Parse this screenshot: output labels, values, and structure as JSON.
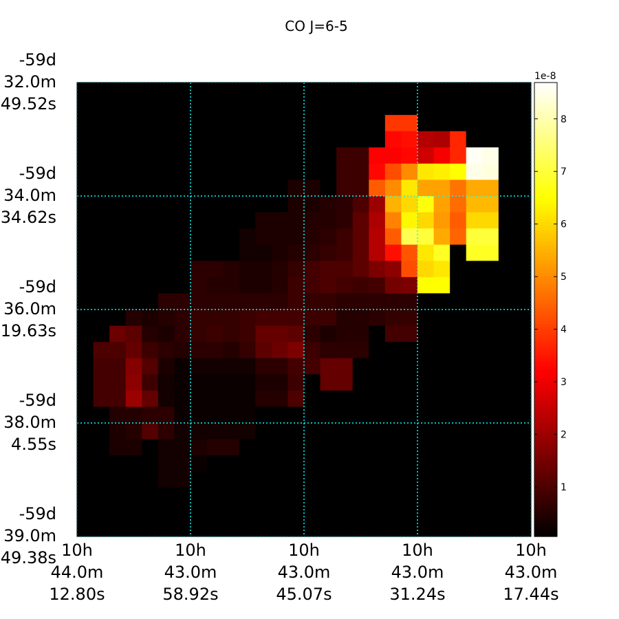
{
  "chart_data": {
    "type": "heatmap",
    "title": "CO J=6-5",
    "colormap": "hot",
    "clim": [
      0.06,
      8.69
    ],
    "colorbar_ticks": [
      1,
      2,
      3,
      4,
      5,
      6,
      7,
      8
    ],
    "colorbar_offset_label": "1e-8",
    "grid": true,
    "grid_color": "#00ffff",
    "xlim": [
      0,
      28
    ],
    "ylim": [
      28,
      0
    ],
    "xticks": [
      {
        "value": 0,
        "label": [
          "10h",
          "44.0m",
          "12.80s"
        ]
      },
      {
        "value": 7,
        "label": [
          "10h",
          "43.0m",
          "58.92s"
        ]
      },
      {
        "value": 14,
        "label": [
          "10h",
          "43.0m",
          "45.07s"
        ]
      },
      {
        "value": 21,
        "label": [
          "10h",
          "43.0m",
          "31.24s"
        ]
      },
      {
        "value": 28,
        "label": [
          "10h",
          "43.0m",
          "17.44s"
        ]
      }
    ],
    "yticks": [
      {
        "value": 0,
        "label": [
          "-59d",
          "32.0m",
          "49.52s"
        ]
      },
      {
        "value": 7,
        "label": [
          "-59d",
          "34.0m",
          "34.62s"
        ]
      },
      {
        "value": 14,
        "label": [
          "-59d",
          "36.0m",
          "19.63s"
        ]
      },
      {
        "value": 21,
        "label": [
          "-59d",
          "38.0m",
          "4.55s"
        ]
      },
      {
        "value": 28,
        "label": [
          "-59d",
          "39.0m",
          "49.38s"
        ]
      }
    ],
    "z": [
      [
        0,
        0,
        0,
        0,
        0,
        0,
        0,
        0,
        0,
        0,
        0,
        0,
        0,
        0,
        0,
        0,
        0,
        0,
        0,
        0,
        0,
        0,
        0,
        0,
        0,
        0,
        0,
        0
      ],
      [
        0,
        0,
        0,
        0,
        0,
        0,
        0,
        0,
        0,
        0,
        0,
        0,
        0,
        0,
        0,
        0,
        0,
        0,
        0,
        0,
        0,
        0,
        0,
        0,
        0,
        0,
        0,
        0
      ],
      [
        0,
        0,
        0,
        0,
        0,
        0,
        0,
        0,
        0,
        0,
        0,
        0,
        0,
        0,
        0,
        0,
        0,
        0,
        0,
        3.9,
        3.9,
        0,
        0,
        0,
        0,
        0,
        0,
        0
      ],
      [
        0,
        0,
        0,
        0,
        0,
        0,
        0,
        0,
        0,
        0,
        0,
        0,
        0,
        0,
        0,
        0,
        0,
        0,
        0,
        3.3,
        3.4,
        2.3,
        2.2,
        3.7,
        0,
        0,
        0,
        0
      ],
      [
        0,
        0,
        0,
        0,
        0,
        0,
        0,
        0,
        0,
        0,
        0,
        0,
        0,
        0,
        0,
        0,
        0.8,
        0.8,
        3.2,
        3.2,
        3.3,
        2.6,
        3.1,
        3.7,
        8.6,
        8.5,
        0,
        0
      ],
      [
        0,
        0,
        0,
        0,
        0,
        0,
        0,
        0,
        0,
        0,
        0,
        0,
        0,
        0,
        0,
        0,
        0.8,
        0.8,
        3.3,
        4.2,
        5.0,
        6.2,
        6.3,
        6.5,
        8.5,
        8.4,
        0,
        0
      ],
      [
        0,
        0,
        0,
        0,
        0,
        0,
        0,
        0,
        0,
        0,
        0,
        0,
        0,
        0.4,
        0.4,
        0,
        0.8,
        0.8,
        4.4,
        5.0,
        6.2,
        5.3,
        5.3,
        4.7,
        5.4,
        5.4,
        0,
        0
      ],
      [
        0,
        0,
        0,
        0,
        0,
        0,
        0,
        0,
        0,
        0,
        0,
        0,
        0,
        0.4,
        0.4,
        0.5,
        0.6,
        1.0,
        2.0,
        5.5,
        6.0,
        6.6,
        5.3,
        4.6,
        5.6,
        5.6,
        0,
        0
      ],
      [
        0,
        0,
        0,
        0,
        0,
        0,
        0,
        0,
        0,
        0,
        0,
        0.4,
        0.4,
        0.4,
        0.5,
        0.5,
        0.6,
        1.2,
        2.2,
        4.9,
        6.4,
        6.0,
        5.2,
        4.4,
        6.0,
        6.0,
        0,
        0
      ],
      [
        0,
        0,
        0,
        0,
        0,
        0,
        0,
        0,
        0,
        0,
        0.3,
        0.4,
        0.4,
        0.4,
        0.5,
        0.6,
        0.8,
        1.2,
        2.3,
        4.4,
        7.2,
        7.0,
        5.4,
        4.5,
        7.0,
        7.0,
        0,
        0
      ],
      [
        0,
        0,
        0,
        0,
        0,
        0,
        0,
        0,
        0,
        0,
        0.3,
        0.3,
        0.4,
        0.5,
        0.6,
        0.7,
        0.8,
        1.2,
        2.3,
        3.4,
        4.3,
        6.2,
        6.8,
        0,
        6.8,
        6.8,
        0,
        0
      ],
      [
        0,
        0,
        0,
        0,
        0,
        0,
        0,
        0.6,
        0.6,
        0.5,
        0.4,
        0.4,
        0.5,
        0.7,
        0.9,
        1.0,
        1.0,
        1.2,
        1.6,
        1.8,
        4.2,
        6.0,
        6.2,
        0,
        0,
        0,
        0,
        0
      ],
      [
        0,
        0,
        0,
        0,
        0,
        0,
        0,
        0.6,
        0.5,
        0.5,
        0.4,
        0.4,
        0.5,
        0.8,
        0.9,
        1.0,
        0.9,
        0.8,
        0.9,
        1.5,
        1.6,
        6.5,
        6.5,
        0,
        0,
        0,
        0,
        0
      ],
      [
        0,
        0,
        0,
        0,
        0,
        0.6,
        0.6,
        0.6,
        0.6,
        0.6,
        0.6,
        0.6,
        0.6,
        0.8,
        0.7,
        0.7,
        0.6,
        0.6,
        0.6,
        0.6,
        0.6,
        0,
        0,
        0,
        0,
        0,
        0,
        0
      ],
      [
        0,
        0,
        0,
        0.5,
        0.4,
        0.5,
        0.6,
        0.7,
        0.7,
        0.7,
        0.8,
        0.9,
        0.9,
        0.9,
        0.8,
        0.8,
        0.5,
        0.5,
        0.6,
        0.7,
        0.7,
        0,
        0,
        0,
        0,
        0,
        0,
        0
      ],
      [
        0,
        0,
        1.4,
        1.2,
        0.5,
        0.4,
        0.6,
        0.7,
        0.8,
        0.7,
        0.8,
        1.3,
        1.3,
        1.2,
        0.6,
        0.4,
        0.5,
        0.5,
        0,
        0.9,
        0.9,
        0,
        0,
        0,
        0,
        0,
        0,
        0
      ],
      [
        0,
        1.0,
        1.0,
        1.3,
        0.8,
        0.6,
        0.5,
        0.6,
        0.6,
        0.5,
        0.7,
        1.2,
        1.4,
        1.6,
        0.8,
        0.6,
        0.6,
        0.6,
        0,
        0,
        0,
        0,
        0,
        0,
        0,
        0,
        0,
        0
      ],
      [
        0,
        0.9,
        0.9,
        1.7,
        1.1,
        0.4,
        0.2,
        0.3,
        0.3,
        0.3,
        0.3,
        0.6,
        0.6,
        0.9,
        0.9,
        1.3,
        1.3,
        0,
        0,
        0,
        0,
        0,
        0,
        0,
        0,
        0,
        0,
        0
      ],
      [
        0,
        0.9,
        0.9,
        1.8,
        0.8,
        0.3,
        0.2,
        0.2,
        0.2,
        0.2,
        0.2,
        0.4,
        0.4,
        0.8,
        0,
        1.3,
        1.3,
        0,
        0,
        0,
        0,
        0,
        0,
        0,
        0,
        0,
        0,
        0
      ],
      [
        0,
        0.9,
        0.9,
        2.0,
        1.3,
        0.3,
        0.2,
        0.2,
        0.2,
        0.2,
        0.2,
        0.5,
        0.5,
        1.0,
        0,
        0,
        0,
        0,
        0,
        0,
        0,
        0,
        0,
        0,
        0,
        0,
        0,
        0
      ],
      [
        0,
        0,
        0.5,
        0.5,
        0.6,
        0.6,
        0.2,
        0.2,
        0.2,
        0.2,
        0.2,
        0,
        0,
        0,
        0,
        0,
        0,
        0,
        0,
        0,
        0,
        0,
        0,
        0,
        0,
        0,
        0,
        0
      ],
      [
        0,
        0,
        0.4,
        0.5,
        1.1,
        0.6,
        0.3,
        0.3,
        0.3,
        0.3,
        0.3,
        0,
        0,
        0,
        0,
        0,
        0,
        0,
        0,
        0,
        0,
        0,
        0,
        0,
        0,
        0,
        0,
        0
      ],
      [
        0,
        0,
        0.4,
        0.4,
        0,
        0.3,
        0.3,
        0.4,
        0.5,
        0.5,
        0,
        0,
        0,
        0,
        0,
        0,
        0,
        0,
        0,
        0,
        0,
        0,
        0,
        0,
        0,
        0,
        0,
        0
      ],
      [
        0,
        0,
        0,
        0,
        0,
        0.3,
        0.3,
        0.2,
        0,
        0,
        0,
        0,
        0,
        0,
        0,
        0,
        0,
        0,
        0,
        0,
        0,
        0,
        0,
        0,
        0,
        0,
        0,
        0
      ],
      [
        0,
        0,
        0,
        0,
        0,
        0.3,
        0.3,
        0,
        0,
        0,
        0,
        0,
        0,
        0,
        0,
        0,
        0,
        0,
        0,
        0,
        0,
        0,
        0,
        0,
        0,
        0,
        0,
        0
      ],
      [
        0,
        0,
        0,
        0,
        0,
        0,
        0,
        0,
        0,
        0,
        0,
        0,
        0,
        0,
        0,
        0,
        0,
        0,
        0,
        0,
        0,
        0,
        0,
        0,
        0,
        0,
        0,
        0
      ],
      [
        0,
        0,
        0,
        0,
        0,
        0,
        0,
        0,
        0,
        0,
        0,
        0,
        0,
        0,
        0,
        0,
        0,
        0,
        0,
        0,
        0,
        0,
        0,
        0,
        0,
        0,
        0,
        0
      ],
      [
        0,
        0,
        0,
        0,
        0,
        0,
        0,
        0,
        0,
        0,
        0,
        0,
        0,
        0,
        0,
        0,
        0,
        0,
        0,
        0,
        0,
        0,
        0,
        0,
        0,
        0,
        0,
        0
      ]
    ]
  }
}
